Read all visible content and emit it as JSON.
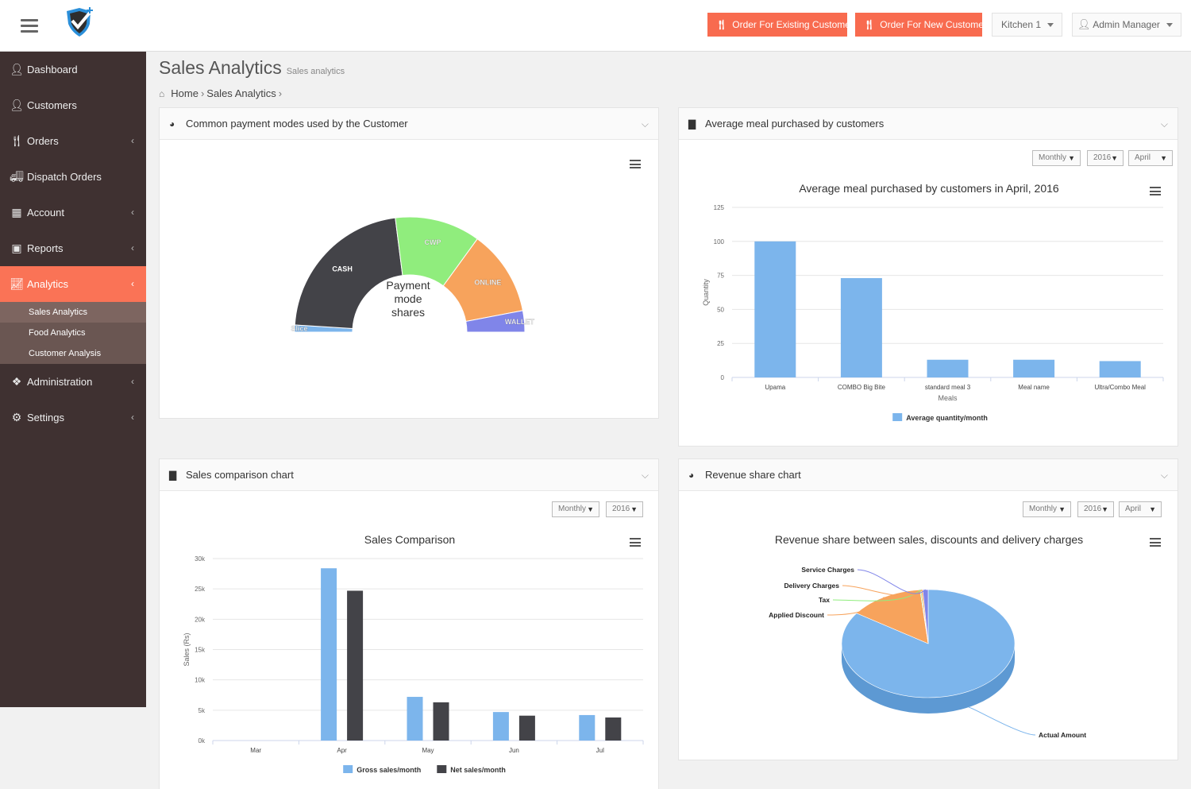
{
  "header": {
    "order_existing": "Order For Existing Customer",
    "order_new": "Order For New Customer",
    "kitchen": "Kitchen 1",
    "user": "Admin Manager"
  },
  "sidebar": {
    "items": [
      {
        "label": "Dashboard",
        "icon": "user-icon"
      },
      {
        "label": "Customers",
        "icon": "user-icon"
      },
      {
        "label": "Orders",
        "icon": "cutlery-icon"
      },
      {
        "label": "Dispatch Orders",
        "icon": "truck-icon"
      },
      {
        "label": "Account",
        "icon": "grid-icon"
      },
      {
        "label": "Reports",
        "icon": "briefcase-icon"
      },
      {
        "label": "Analytics",
        "icon": "line-chart-icon"
      },
      {
        "label": "Administration",
        "icon": "puzzle-icon"
      },
      {
        "label": "Settings",
        "icon": "gears-icon"
      }
    ],
    "analytics_sub": [
      "Sales Analytics",
      "Food Analytics",
      "Customer Analysis"
    ]
  },
  "page": {
    "title": "Sales Analytics",
    "subtitle": "Sales analytics",
    "breadcrumb_home": "Home",
    "breadcrumb_current": "Sales Analytics"
  },
  "panels": {
    "payment": {
      "title": "Common payment modes used by the Customer"
    },
    "avg_meal": {
      "title": "Average meal purchased by customers",
      "period": "Monthly",
      "year": "2016",
      "month": "April"
    },
    "sales": {
      "title": "Sales comparison chart",
      "period": "Monthly",
      "year": "2016"
    },
    "revenue": {
      "title": "Revenue share chart",
      "period": "Monthly",
      "year": "2016",
      "month": "April"
    }
  },
  "chart_data": [
    {
      "type": "pie",
      "variant": "semi-donut",
      "title": "Payment mode shares",
      "categories": [
        "Slice",
        "CASH",
        "CWP",
        "ONLINE",
        "WALLET"
      ],
      "values": [
        2,
        44,
        24,
        24,
        6
      ],
      "colors": [
        "#7cb5ec",
        "#434348",
        "#90ed7d",
        "#f7a35c",
        "#8085e9"
      ]
    },
    {
      "type": "bar",
      "title": "Average meal purchased by customers in April, 2016",
      "xlabel": "Meals",
      "ylabel": "Quantity",
      "categories": [
        "Upama",
        "COMBO Big Bite",
        "standard meal 3",
        "Meal name",
        "Ultra/Combo Meal"
      ],
      "series": [
        {
          "name": "Average quantity/month",
          "values": [
            100,
            73,
            13,
            13,
            12
          ]
        }
      ],
      "ylim": [
        0,
        125
      ],
      "ticks": [
        0,
        25,
        50,
        75,
        100,
        125
      ],
      "colors": [
        "#7cb5ec"
      ]
    },
    {
      "type": "bar",
      "title": "Sales Comparison",
      "xlabel": "",
      "ylabel": "Sales (Rs)",
      "categories": [
        "Mar",
        "Apr",
        "May",
        "Jun",
        "Jul"
      ],
      "series": [
        {
          "name": "Gross sales/month",
          "values": [
            0,
            28400,
            7200,
            4700,
            4200
          ]
        },
        {
          "name": "Net sales/month",
          "values": [
            0,
            24700,
            6300,
            4100,
            3800
          ]
        }
      ],
      "ylim": [
        0,
        30000
      ],
      "ticks": [
        "0k",
        "5k",
        "10k",
        "15k",
        "20k",
        "25k",
        "30k"
      ],
      "colors": [
        "#7cb5ec",
        "#434348"
      ]
    },
    {
      "type": "pie",
      "variant": "3d",
      "title": "Revenue share between sales, discounts and delivery charges",
      "categories": [
        "Actual Amount",
        "Applied Discount",
        "Tax",
        "Delivery Charges",
        "Service Charges"
      ],
      "values": [
        84.5,
        14.0,
        0.2,
        0.3,
        1.0
      ],
      "colors": [
        "#7cb5ec",
        "#f7a35c",
        "#90ed7d",
        "#f7a35c",
        "#8085e9"
      ]
    }
  ]
}
